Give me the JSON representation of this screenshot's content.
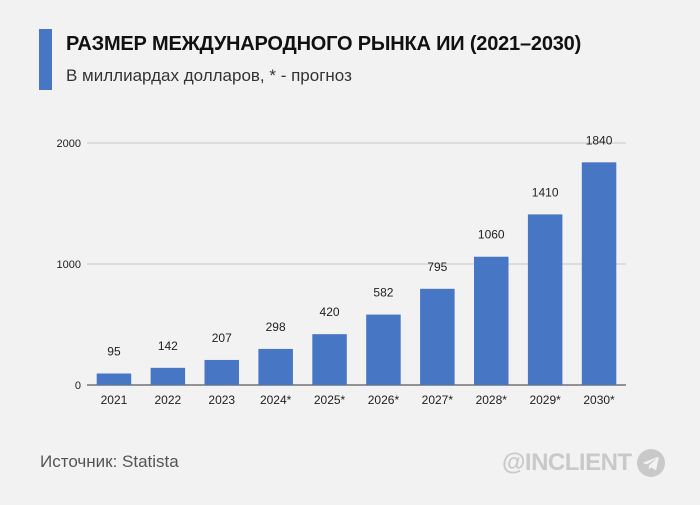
{
  "header": {
    "title": "РАЗМЕР МЕЖДУНАРОДНОГО РЫНКА ИИ (2021–2030)",
    "subtitle": "В миллиардах долларов, * - прогноз"
  },
  "footer": {
    "source": "Источник: Statista",
    "brand": "@INCLIENT",
    "brand_icon": "telegram-icon"
  },
  "colors": {
    "bar": "#4676c4",
    "accent": "#4676c4",
    "brand": "#c9c9c9"
  },
  "chart_data": {
    "type": "bar",
    "categories": [
      "2021",
      "2022",
      "2023",
      "2024*",
      "2025*",
      "2026*",
      "2027*",
      "2028*",
      "2029*",
      "2030*"
    ],
    "values": [
      95,
      142,
      207,
      298,
      420,
      582,
      795,
      1060,
      1410,
      1840
    ],
    "data_labels": [
      "95",
      "142",
      "207",
      "298",
      "420",
      "582",
      "795",
      "1060",
      "1410",
      "1840"
    ],
    "y_ticks": [
      0,
      1000,
      2000
    ],
    "ylim": [
      0,
      2000
    ],
    "grid": true,
    "legend": "none",
    "title": "РАЗМЕР МЕЖДУНАРОДНОГО РЫНКА ИИ (2021–2030)",
    "subtitle": "В миллиардах долларов, * - прогноз"
  }
}
